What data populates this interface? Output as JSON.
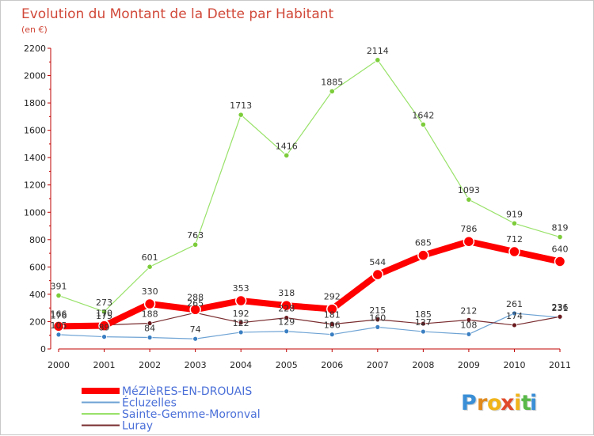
{
  "chart_data": {
    "type": "line",
    "title": "Evolution du Montant de la Dette par Habitant",
    "subtitle": "(en €)",
    "xlabel": "",
    "ylabel": "",
    "categories": [
      "2000",
      "2001",
      "2002",
      "2003",
      "2004",
      "2005",
      "2006",
      "2007",
      "2008",
      "2009",
      "2010",
      "2011"
    ],
    "ylim": [
      0,
      2200
    ],
    "yticks": [
      0,
      200,
      400,
      600,
      800,
      1000,
      1200,
      1400,
      1600,
      1800,
      2000,
      2200
    ],
    "grid": false,
    "legend_position": "bottom-left",
    "series": [
      {
        "name": "Sainte-Gemme-Moronval",
        "color": "#99e26a",
        "marker": "#7ccc3a",
        "width": 1.2,
        "radius": 3.2,
        "values": [
          391,
          273,
          601,
          763,
          1713,
          1416,
          1885,
          2114,
          1642,
          1093,
          919,
          819
        ],
        "labels": [
          "391",
          "273",
          "601",
          "763",
          "1713",
          "1416",
          "1885",
          "2114",
          "1642",
          "1093",
          "919",
          "819"
        ]
      },
      {
        "name": "Écluzelles",
        "color": "#6ea3d4",
        "marker": "#3a7fc2",
        "width": 1.2,
        "radius": 3,
        "values": [
          105,
          89,
          84,
          74,
          122,
          129,
          106,
          160,
          127,
          108,
          261,
          231
        ],
        "labels": [
          "105",
          "89",
          "84",
          "74",
          "122",
          "129",
          "106",
          "160",
          "127",
          "108",
          "261",
          "231"
        ]
      },
      {
        "name": "Luray",
        "color": "#7a2d30",
        "marker": "#6a1a1e",
        "width": 1.2,
        "radius": 3,
        "values": [
          176,
          175,
          188,
          265,
          192,
          228,
          181,
          215,
          185,
          212,
          174,
          236
        ],
        "labels": [
          "176",
          "175",
          "188",
          "265",
          "192",
          "228",
          "181",
          "215",
          "185",
          "212",
          "174",
          "236"
        ]
      },
      {
        "name": "MéZIèRES-EN-DROUAIS",
        "color": "#ff0000",
        "marker": "#ff0000",
        "width": 8,
        "radius": 6.5,
        "values": [
          166,
          170,
          330,
          288,
          353,
          318,
          292,
          544,
          685,
          786,
          712,
          640
        ],
        "labels": [
          "166",
          "170",
          "330",
          "288",
          "353",
          "318",
          "292",
          "544",
          "685",
          "786",
          "712",
          "640"
        ]
      }
    ],
    "legend": [
      {
        "name": "MéZIèRES-EN-DROUAIS",
        "color": "#ff0000",
        "thick": true
      },
      {
        "name": "Écluzelles",
        "color": "#6ea3d4",
        "thick": false
      },
      {
        "name": "Sainte-Gemme-Moronval",
        "color": "#99e26a",
        "thick": false
      },
      {
        "name": "Luray",
        "color": "#7a2d30",
        "thick": false
      }
    ]
  },
  "brand": {
    "letters": [
      "P",
      "r",
      "o",
      "x",
      "i",
      "t",
      "i"
    ],
    "colors": [
      "#3a8fd6",
      "#e08a1e",
      "#f0b41a",
      "#e04a2a",
      "#f0b41a",
      "#58b848",
      "#3a8fd6"
    ]
  }
}
